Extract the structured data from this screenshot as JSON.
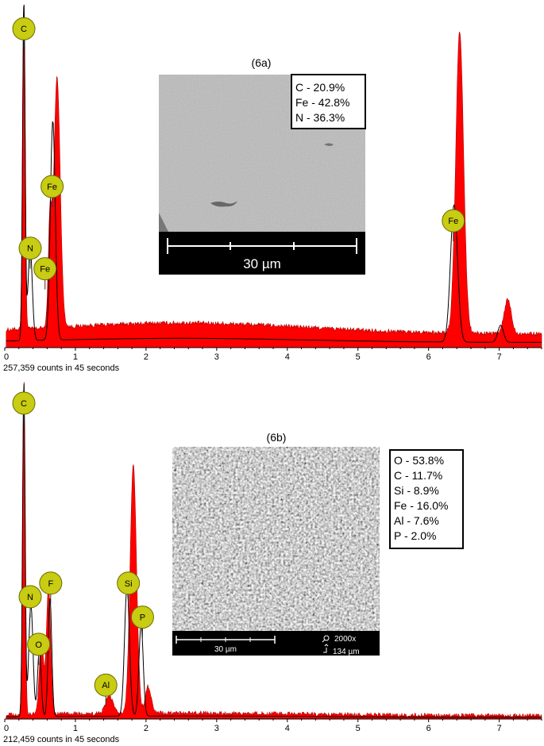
{
  "colors": {
    "spectrum_fill": "#ff0000",
    "marker_fill": "#c8cc12",
    "marker_stroke": "#6b6b00"
  },
  "chart_data": [
    {
      "type": "area",
      "title": "(6a)",
      "x_ticks": [
        "0",
        "1",
        "2",
        "3",
        "4",
        "5",
        "6",
        "7"
      ],
      "xlim": [
        0,
        7.6
      ],
      "footer": "257,359 counts in 45 seconds",
      "red_peaks": [
        {
          "x": 0.27,
          "h": 0.99,
          "w": 0.018
        },
        {
          "x": 0.74,
          "h": 0.73,
          "w": 0.045
        },
        {
          "x": 0.64,
          "h": 0.3,
          "w": 0.025
        },
        {
          "x": 6.44,
          "h": 0.88,
          "w": 0.055
        },
        {
          "x": 7.12,
          "h": 0.1,
          "w": 0.05
        }
      ],
      "red_baseline": 0.04,
      "black_peaks": [
        {
          "x": 0.27,
          "h": 0.99,
          "w": 0.018
        },
        {
          "x": 0.36,
          "h": 0.27,
          "w": 0.03
        },
        {
          "x": 0.68,
          "h": 0.64,
          "w": 0.035
        },
        {
          "x": 6.36,
          "h": 0.4,
          "w": 0.05
        },
        {
          "x": 7.02,
          "h": 0.05,
          "w": 0.04
        }
      ],
      "black_baseline": 0.015,
      "markers": [
        {
          "label": "C",
          "x": 0.27,
          "y": 0.93
        },
        {
          "label": "Fe",
          "x": 0.67,
          "y": 0.47
        },
        {
          "label": "N",
          "x": 0.36,
          "y": 0.29
        },
        {
          "label": "Fe",
          "x": 0.57,
          "y": 0.23
        },
        {
          "label": "Fe",
          "x": 6.35,
          "y": 0.37
        }
      ],
      "inset": {
        "scale_label": "30 µm",
        "composition": [
          "C - 20.9%",
          "Fe - 42.8%",
          "N - 36.3%"
        ]
      }
    },
    {
      "type": "area",
      "title": "(6b)",
      "x_ticks": [
        "0",
        "1",
        "2",
        "3",
        "4",
        "5",
        "6",
        "7"
      ],
      "xlim": [
        0,
        7.6
      ],
      "footer": "212,459 counts in 45 seconds",
      "red_peaks": [
        {
          "x": 0.27,
          "h": 0.99,
          "w": 0.018
        },
        {
          "x": 0.52,
          "h": 0.22,
          "w": 0.03
        },
        {
          "x": 0.62,
          "h": 0.38,
          "w": 0.03
        },
        {
          "x": 1.48,
          "h": 0.05,
          "w": 0.05
        },
        {
          "x": 1.82,
          "h": 0.73,
          "w": 0.045
        },
        {
          "x": 2.03,
          "h": 0.08,
          "w": 0.04
        }
      ],
      "red_baseline": 0.01,
      "black_peaks": [
        {
          "x": 0.27,
          "h": 0.99,
          "w": 0.018
        },
        {
          "x": 0.37,
          "h": 0.33,
          "w": 0.03
        },
        {
          "x": 0.49,
          "h": 0.2,
          "w": 0.025
        },
        {
          "x": 0.64,
          "h": 0.35,
          "w": 0.025
        },
        {
          "x": 1.73,
          "h": 0.38,
          "w": 0.035
        },
        {
          "x": 1.93,
          "h": 0.27,
          "w": 0.03
        }
      ],
      "black_baseline": 0.005,
      "markers": [
        {
          "label": "C",
          "x": 0.27,
          "y": 0.93
        },
        {
          "label": "N",
          "x": 0.36,
          "y": 0.36
        },
        {
          "label": "F",
          "x": 0.65,
          "y": 0.4
        },
        {
          "label": "O",
          "x": 0.48,
          "y": 0.22
        },
        {
          "label": "Si",
          "x": 1.75,
          "y": 0.4
        },
        {
          "label": "P",
          "x": 1.95,
          "y": 0.3
        },
        {
          "label": "Al",
          "x": 1.43,
          "y": 0.1
        }
      ],
      "inset": {
        "scale_label": "30 µm",
        "mag_label": "2000x",
        "field_label": "134 µm",
        "composition": [
          "O - 53.8%",
          "C - 11.7%",
          "Si - 8.9%",
          "Fe - 16.0%",
          "Al - 7.6%",
          "P - 2.0%"
        ]
      }
    }
  ]
}
